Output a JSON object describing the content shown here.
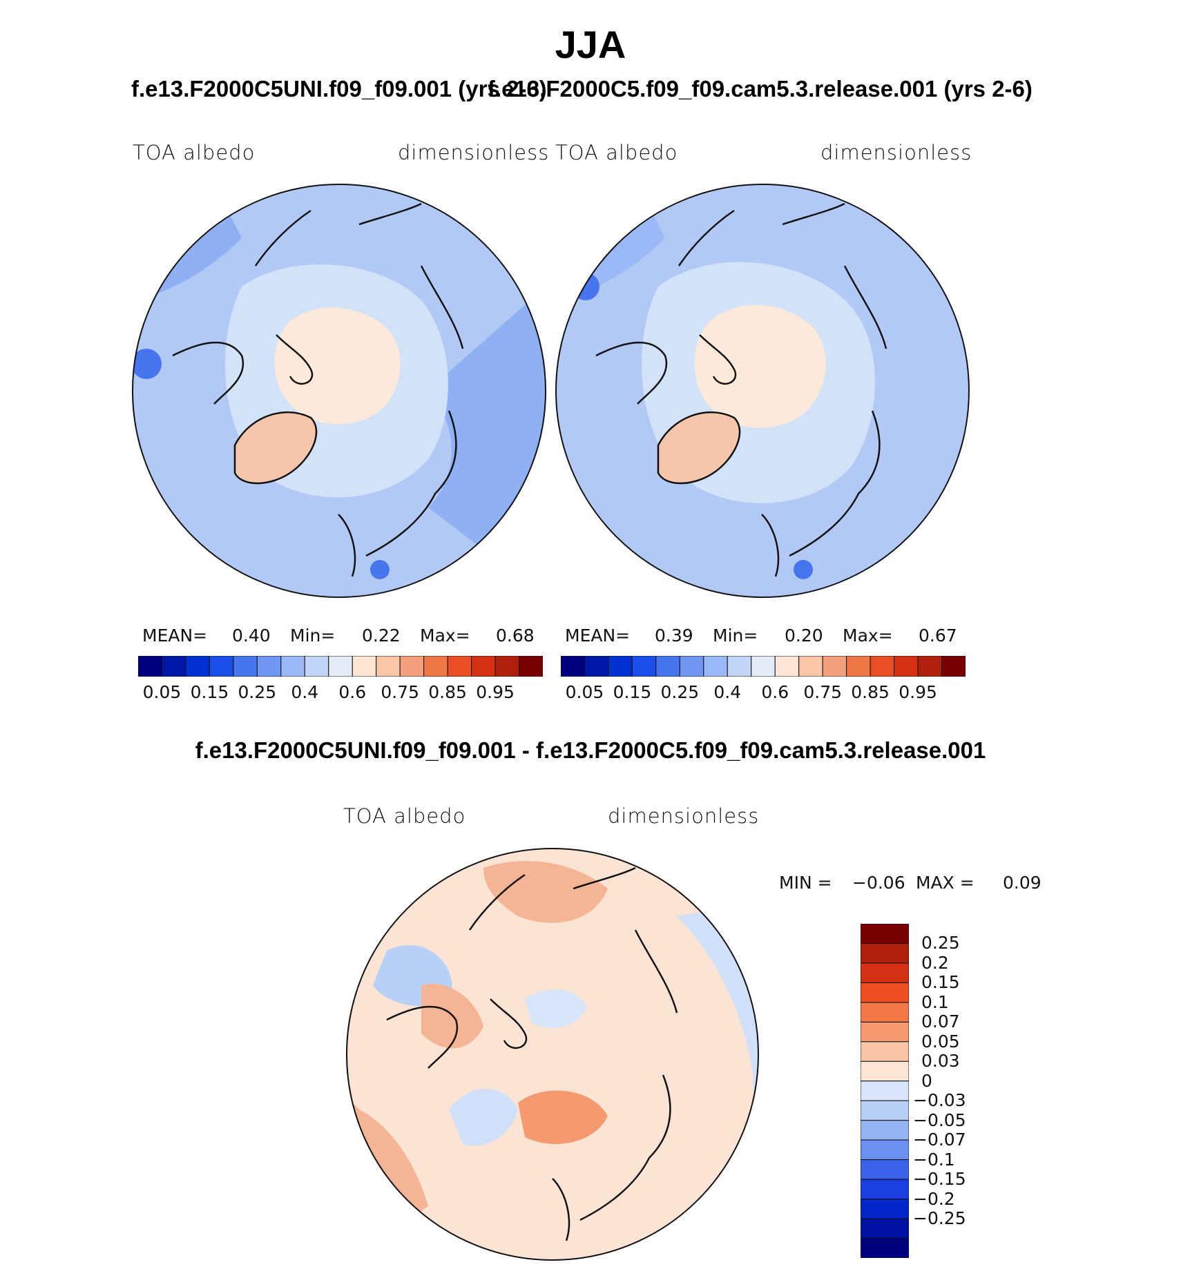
{
  "title": "JJA",
  "panels": [
    {
      "case": "f.e13.F2000C5UNI.f09_f09.001 (yrs 2-6)",
      "var_label": "TOA albedo",
      "units": "dimensionless",
      "stats": {
        "mean_label": "MEAN=",
        "mean": "0.40",
        "min_label": "Min=",
        "min": "0.22",
        "max_label": "Max=",
        "max": "0.68"
      }
    },
    {
      "case": "f.e13.F2000C5.f09_f09.cam5.3.release.001 (yrs 2-6)",
      "var_label": "TOA albedo",
      "units": "dimensionless",
      "stats": {
        "mean_label": "MEAN=",
        "mean": "0.39",
        "min_label": "Min=",
        "min": "0.20",
        "max_label": "Max=",
        "max": "0.67"
      }
    }
  ],
  "diff": {
    "title": "f.e13.F2000C5UNI.f09_f09.001 - f.e13.F2000C5.f09_f09.cam5.3.release.001",
    "var_label": "TOA albedo",
    "units": "dimensionless",
    "stats": {
      "min_label": "MIN =",
      "min": "−0.06",
      "max_label": "MAX =",
      "max": "0.09"
    }
  },
  "abs_colorbar": {
    "colors": [
      "#00007f",
      "#0017a8",
      "#0030d0",
      "#1a4fea",
      "#4775f0",
      "#7098f2",
      "#9ab8f5",
      "#c4d6f7",
      "#e3ecf8",
      "#fbe6d6",
      "#f9c6a8",
      "#f4a07c",
      "#f07848",
      "#ea4e24",
      "#d53012",
      "#b0200a",
      "#7a0000"
    ],
    "labels": [
      "0.05",
      "0.15",
      "0.25",
      "0.4",
      "0.6",
      "0.75",
      "0.85",
      "0.95"
    ]
  },
  "diff_colorbar": {
    "colors": [
      "#7a0000",
      "#b0200a",
      "#d53012",
      "#f05020",
      "#f47848",
      "#f59a70",
      "#f8c6a6",
      "#fce6d6",
      "#d6e6f8",
      "#b8cff6",
      "#94b4f3",
      "#6a90f0",
      "#3a62ea",
      "#1a3fe0",
      "#0025c8",
      "#0010a0",
      "#00007f"
    ],
    "labels": [
      "0.25",
      "0.2",
      "0.15",
      "0.1",
      "0.07",
      "0.05",
      "0.03",
      "0",
      "−0.03",
      "−0.05",
      "−0.07",
      "−0.1",
      "−0.15",
      "−0.2",
      "−0.25"
    ]
  },
  "colors": {
    "ocean_base_abs": "#b3c9f5",
    "ocean_deep_abs": "#8fb0f2",
    "arctic_abs": "#d2e2f8",
    "pole_abs": "#fbe9da",
    "greenland_abs": "#f6c6ac",
    "diff_base": "#fbe4d4",
    "diff_pos": "#f5b594",
    "diff_neg": "#cfe0f8"
  }
}
